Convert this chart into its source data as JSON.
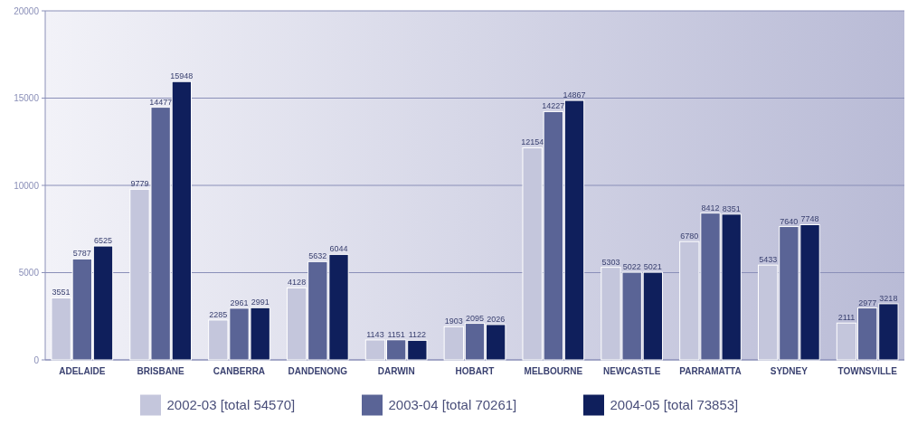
{
  "chart_data": {
    "type": "bar",
    "categories": [
      "ADELAIDE",
      "BRISBANE",
      "CANBERRA",
      "DANDENONG",
      "DARWIN",
      "HOBART",
      "MELBOURNE",
      "NEWCASTLE",
      "PARRAMATTA",
      "SYDNEY",
      "TOWNSVILLE"
    ],
    "series": [
      {
        "name": "2002-03 [total 54570]",
        "color": "#c4c6dc",
        "values": [
          3551,
          9779,
          2285,
          4128,
          1143,
          1903,
          12154,
          5303,
          6780,
          5433,
          2111
        ]
      },
      {
        "name": "2003-04 [total 70261]",
        "color": "#5a6496",
        "values": [
          5787,
          14477,
          2961,
          5632,
          1151,
          2095,
          14227,
          5022,
          8412,
          7640,
          2977
        ]
      },
      {
        "name": "2004-05 [total 73853]",
        "color": "#0f1f5c",
        "values": [
          6525,
          15948,
          2991,
          6044,
          1122,
          2026,
          14867,
          5021,
          8351,
          7748,
          3218
        ]
      }
    ],
    "ylim": [
      0,
      20000
    ],
    "yticks": [
      0,
      5000,
      10000,
      15000,
      20000
    ],
    "grid": "y",
    "legend": "bottom",
    "data_labels": true
  }
}
